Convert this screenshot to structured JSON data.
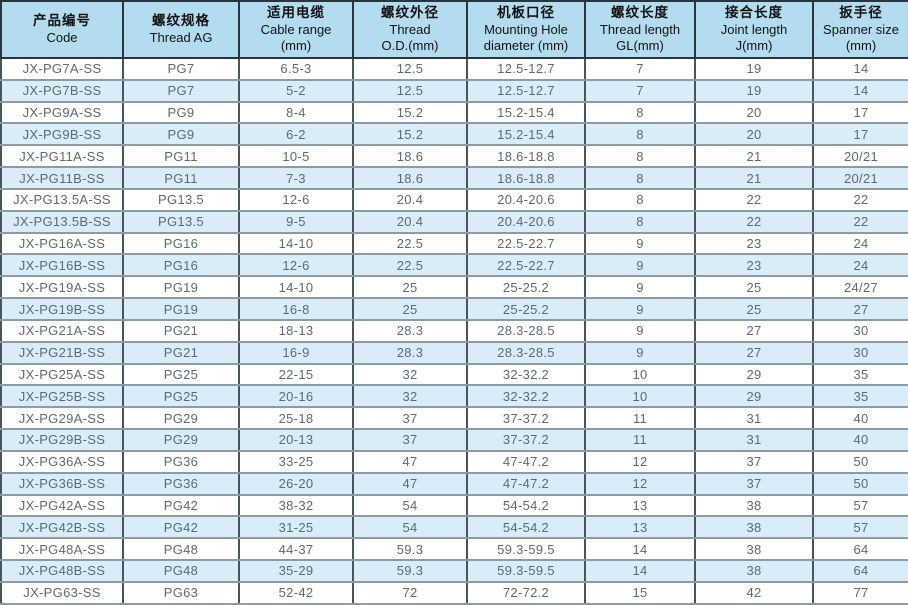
{
  "table": {
    "columns": [
      {
        "zh": "产品编号",
        "en": "Code"
      },
      {
        "zh": "螺纹规格",
        "en": "Thread AG"
      },
      {
        "zh": "适用电缆",
        "en": "Cable range\n(mm)"
      },
      {
        "zh": "螺纹外径",
        "en": "Thread\nO.D.(mm)"
      },
      {
        "zh": "机板口径",
        "en": "Mounting Hole\ndiameter (mm)"
      },
      {
        "zh": "螺纹长度",
        "en": "Thread length\nGL(mm)"
      },
      {
        "zh": "接合长度",
        "en": "Joint length\nJ(mm)"
      },
      {
        "zh": "扳手径",
        "en": "Spanner size\n(mm)"
      }
    ],
    "rows": [
      [
        "JX-PG7A-SS",
        "PG7",
        "6.5-3",
        "12.5",
        "12.5-12.7",
        "7",
        "19",
        "14"
      ],
      [
        "JX-PG7B-SS",
        "PG7",
        "5-2",
        "12.5",
        "12.5-12.7",
        "7",
        "19",
        "14"
      ],
      [
        "JX-PG9A-SS",
        "PG9",
        "8-4",
        "15.2",
        "15.2-15.4",
        "8",
        "20",
        "17"
      ],
      [
        "JX-PG9B-SS",
        "PG9",
        "6-2",
        "15.2",
        "15.2-15.4",
        "8",
        "20",
        "17"
      ],
      [
        "JX-PG11A-SS",
        "PG11",
        "10-5",
        "18.6",
        "18.6-18.8",
        "8",
        "21",
        "20/21"
      ],
      [
        "JX-PG11B-SS",
        "PG11",
        "7-3",
        "18.6",
        "18.6-18.8",
        "8",
        "21",
        "20/21"
      ],
      [
        "JX-PG13.5A-SS",
        "PG13.5",
        "12-6",
        "20.4",
        "20.4-20.6",
        "8",
        "22",
        "22"
      ],
      [
        "JX-PG13.5B-SS",
        "PG13.5",
        "9-5",
        "20.4",
        "20.4-20.6",
        "8",
        "22",
        "22"
      ],
      [
        "JX-PG16A-SS",
        "PG16",
        "14-10",
        "22.5",
        "22.5-22.7",
        "9",
        "23",
        "24"
      ],
      [
        "JX-PG16B-SS",
        "PG16",
        "12-6",
        "22.5",
        "22.5-22.7",
        "9",
        "23",
        "24"
      ],
      [
        "JX-PG19A-SS",
        "PG19",
        "14-10",
        "25",
        "25-25.2",
        "9",
        "25",
        "24/27"
      ],
      [
        "JX-PG19B-SS",
        "PG19",
        "16-8",
        "25",
        "25-25.2",
        "9",
        "25",
        "27"
      ],
      [
        "JX-PG21A-SS",
        "PG21",
        "18-13",
        "28.3",
        "28.3-28.5",
        "9",
        "27",
        "30"
      ],
      [
        "JX-PG21B-SS",
        "PG21",
        "16-9",
        "28.3",
        "28.3-28.5",
        "9",
        "27",
        "30"
      ],
      [
        "JX-PG25A-SS",
        "PG25",
        "22-15",
        "32",
        "32-32.2",
        "10",
        "29",
        "35"
      ],
      [
        "JX-PG25B-SS",
        "PG25",
        "20-16",
        "32",
        "32-32.2",
        "10",
        "29",
        "35"
      ],
      [
        "JX-PG29A-SS",
        "PG29",
        "25-18",
        "37",
        "37-37.2",
        "11",
        "31",
        "40"
      ],
      [
        "JX-PG29B-SS",
        "PG29",
        "20-13",
        "37",
        "37-37.2",
        "11",
        "31",
        "40"
      ],
      [
        "JX-PG36A-SS",
        "PG36",
        "33-25",
        "47",
        "47-47.2",
        "12",
        "37",
        "50"
      ],
      [
        "JX-PG36B-SS",
        "PG36",
        "26-20",
        "47",
        "47-47.2",
        "12",
        "37",
        "50"
      ],
      [
        "JX-PG42A-SS",
        "PG42",
        "38-32",
        "54",
        "54-54.2",
        "13",
        "38",
        "57"
      ],
      [
        "JX-PG42B-SS",
        "PG42",
        "31-25",
        "54",
        "54-54.2",
        "13",
        "38",
        "57"
      ],
      [
        "JX-PG48A-SS",
        "PG48",
        "44-37",
        "59.3",
        "59.3-59.5",
        "14",
        "38",
        "64"
      ],
      [
        "JX-PG48B-SS",
        "PG48",
        "35-29",
        "59.3",
        "59.3-59.5",
        "14",
        "38",
        "64"
      ],
      [
        "JX-PG63-SS",
        "PG63",
        "52-42",
        "72",
        "72-72.2",
        "15",
        "42",
        "77"
      ]
    ]
  },
  "colors": {
    "header_bg": "#b3dcef",
    "row_alt_bg": "#d9ecf8",
    "row_bg": "#ffffff",
    "border_dark": "#2a343a",
    "grid_vertical": "#46555e",
    "grid_horizontal": "#8d9ba3",
    "body_text": "#5c6a73",
    "header_text": "#121212"
  }
}
